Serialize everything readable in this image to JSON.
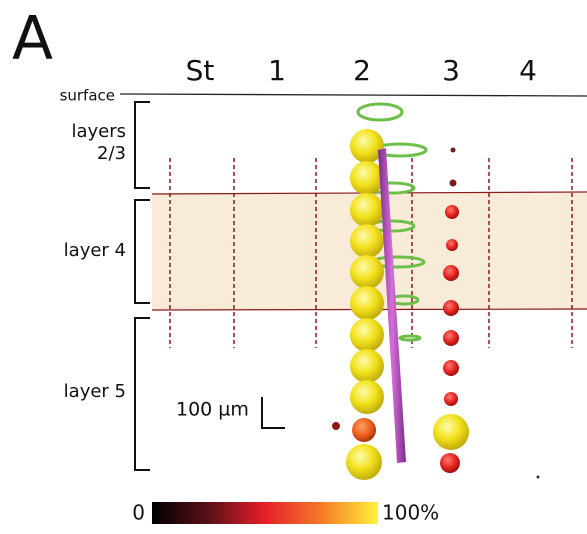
{
  "panel_label": "A",
  "columns": [
    "St",
    "1",
    "2",
    "3",
    "4"
  ],
  "surface_label": "surface",
  "layers": [
    {
      "lines": [
        "layers",
        "2/3"
      ]
    },
    {
      "lines": [
        "layer 4"
      ]
    },
    {
      "lines": [
        "layer 5"
      ]
    }
  ],
  "scale_bar": "100 µm",
  "colorbar": {
    "min_label": "0",
    "max_label": "100%"
  }
}
